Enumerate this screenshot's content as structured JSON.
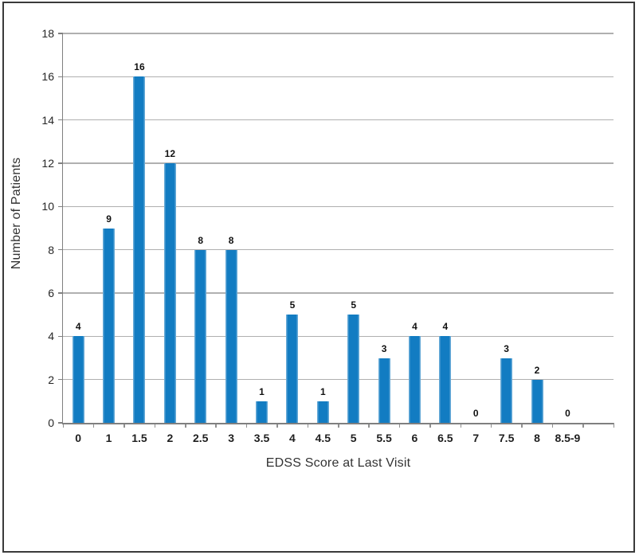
{
  "chart_data": {
    "type": "bar",
    "categories": [
      "0",
      "1",
      "1.5",
      "2",
      "2.5",
      "3",
      "3.5",
      "4",
      "4.5",
      "5",
      "5.5",
      "6",
      "6.5",
      "7",
      "7.5",
      "8",
      "8.5-9"
    ],
    "values": [
      4,
      9,
      16,
      12,
      8,
      8,
      1,
      5,
      1,
      5,
      3,
      4,
      4,
      0,
      3,
      2,
      0
    ],
    "xlabel": "EDSS Score at Last Visit",
    "ylabel": "Number of Patients",
    "ylim": [
      0,
      18
    ],
    "ytick_step": 2,
    "ytick_labels": [
      "0",
      "2",
      "4",
      "6",
      "8",
      "10",
      "12",
      "14",
      "16",
      "18"
    ],
    "grid": true,
    "legend": false,
    "show_data_labels": true,
    "colors": {
      "bar": "#127CC2",
      "gridline": "#B0B0B0",
      "axis": "#7F7F7F",
      "tick": "#909090",
      "tick_label": "#262626",
      "data_label": "#111111",
      "axis_title": "#333333",
      "frame_border": "#3A3A3A",
      "background": "#FFFFFF"
    },
    "layout": {
      "trailing_empty_slots": 1,
      "legend_position": "none",
      "grid_direction": "horizontal"
    }
  }
}
